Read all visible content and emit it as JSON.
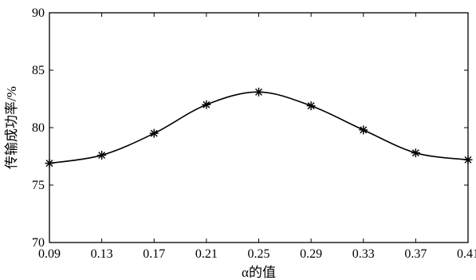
{
  "chart_data": {
    "type": "line",
    "title": "",
    "xlabel": "α的值",
    "ylabel": "传输成功率/%",
    "x": [
      0.09,
      0.13,
      0.17,
      0.21,
      0.25,
      0.29,
      0.33,
      0.37,
      0.41
    ],
    "x_ticks": [
      "0.09",
      "0.13",
      "0.17",
      "0.21",
      "0.25",
      "0.29",
      "0.33",
      "0.37",
      "0.41"
    ],
    "y_ticks": [
      "70",
      "75",
      "80",
      "85",
      "90"
    ],
    "xlim": [
      0.09,
      0.41
    ],
    "ylim": [
      70,
      90
    ],
    "grid": false,
    "series": [
      {
        "values": [
          76.9,
          77.6,
          79.5,
          82.0,
          83.1,
          81.9,
          79.8,
          77.8,
          77.2
        ],
        "marker": "asterisk",
        "color": "#000000"
      }
    ]
  }
}
